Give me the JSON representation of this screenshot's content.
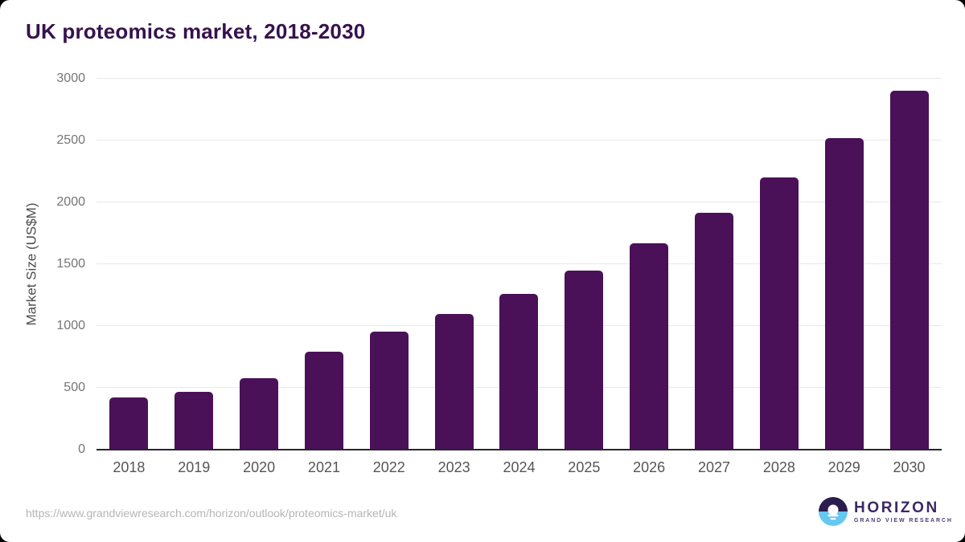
{
  "chart_data": {
    "type": "bar",
    "title": "UK proteomics market, 2018-2030",
    "xlabel": "",
    "ylabel": "Market Size (US$M)",
    "ylim": [
      0,
      3000
    ],
    "yticks": [
      0,
      500,
      1000,
      1500,
      2000,
      2500,
      3000
    ],
    "categories": [
      "2018",
      "2019",
      "2020",
      "2021",
      "2022",
      "2023",
      "2024",
      "2025",
      "2026",
      "2027",
      "2028",
      "2029",
      "2030"
    ],
    "values": [
      425,
      465,
      580,
      790,
      955,
      1100,
      1260,
      1450,
      1670,
      1915,
      2200,
      2520,
      2905
    ],
    "bar_color": "#4A1158",
    "grid": "horizontal",
    "legend_position": "none"
  },
  "footer": {
    "source_url": "https://www.grandviewresearch.com/horizon/outlook/proteomics-market/uk",
    "logo": {
      "name": "HORIZON",
      "subtitle": "GRAND VIEW RESEARCH"
    }
  },
  "colors": {
    "title_text": "#37114E",
    "bar": "#4A1158",
    "gridline": "#E8E8E8",
    "axis_line": "#26262B",
    "y_tick_text": "#757575",
    "x_tick_text": "#555555",
    "y_axis_title_text": "#4D4D4D",
    "source_url_text": "#B5B5B5",
    "logo_dark": "#2B1D4E",
    "logo_blue": "#66C7F1",
    "logo_text": "#3B2A63",
    "card_background": "#FFFFFF",
    "page_background": "#000000"
  }
}
